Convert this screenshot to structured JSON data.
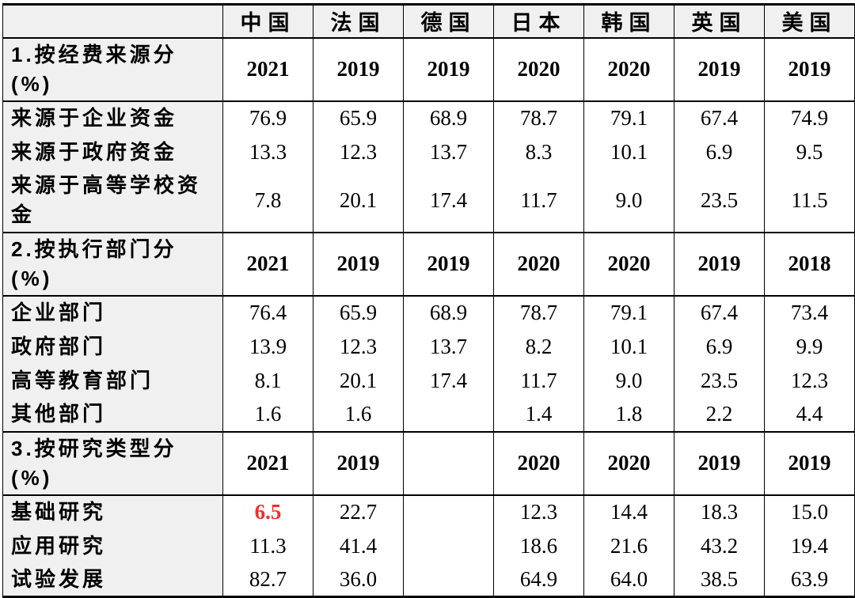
{
  "chart_data": {
    "type": "table",
    "corner_label": "",
    "country_columns": [
      "中国",
      "法国",
      "德国",
      "日本",
      "韩国",
      "英国",
      "美国"
    ],
    "sections": [
      {
        "label": "1.按经费来源分\n(%)",
        "years": [
          "2021",
          "2019",
          "2019",
          "2020",
          "2020",
          "2019",
          "2019"
        ],
        "rows": [
          {
            "label": "来源于企业资金",
            "values": [
              "76.9",
              "65.9",
              "68.9",
              "78.7",
              "79.1",
              "67.4",
              "74.9"
            ]
          },
          {
            "label": "来源于政府资金",
            "values": [
              "13.3",
              "12.3",
              "13.7",
              "8.3",
              "10.1",
              "6.9",
              "9.5"
            ]
          },
          {
            "label": "来源于高等学校资金",
            "values": [
              "7.8",
              "20.1",
              "17.4",
              "11.7",
              "9.0",
              "23.5",
              "11.5"
            ]
          }
        ]
      },
      {
        "label": "2.按执行部门分\n(%)",
        "years": [
          "2021",
          "2019",
          "2019",
          "2020",
          "2020",
          "2019",
          "2018"
        ],
        "rows": [
          {
            "label": "企业部门",
            "values": [
              "76.4",
              "65.9",
              "68.9",
              "78.7",
              "79.1",
              "67.4",
              "73.4"
            ]
          },
          {
            "label": "政府部门",
            "values": [
              "13.9",
              "12.3",
              "13.7",
              "8.2",
              "10.1",
              "6.9",
              "9.9"
            ]
          },
          {
            "label": "高等教育部门",
            "values": [
              "8.1",
              "20.1",
              "17.4",
              "11.7",
              "9.0",
              "23.5",
              "12.3"
            ]
          },
          {
            "label": "其他部门",
            "values": [
              "1.6",
              "1.6",
              "",
              "1.4",
              "1.8",
              "2.2",
              "4.4"
            ]
          }
        ]
      },
      {
        "label": "3.按研究类型分\n(%)",
        "years": [
          "2021",
          "2019",
          "",
          "2020",
          "2020",
          "2019",
          "2019"
        ],
        "rows": [
          {
            "label": "基础研究",
            "values": [
              "6.5",
              "22.7",
              "",
              "12.3",
              "14.4",
              "18.3",
              "15.0"
            ]
          },
          {
            "label": "应用研究",
            "values": [
              "11.3",
              "41.4",
              "",
              "18.6",
              "21.6",
              "43.2",
              "19.4"
            ]
          },
          {
            "label": "试验发展",
            "values": [
              "82.7",
              "36.0",
              "",
              "64.9",
              "64.0",
              "38.5",
              "63.9"
            ]
          }
        ]
      }
    ],
    "highlight": {
      "row": "基础研究",
      "country": "中国",
      "value": "6.5",
      "color": "#ee302c"
    },
    "colors": {
      "header_bg": "#f0f0f0",
      "border": "#000000",
      "highlight_red": "#ee302c"
    }
  }
}
